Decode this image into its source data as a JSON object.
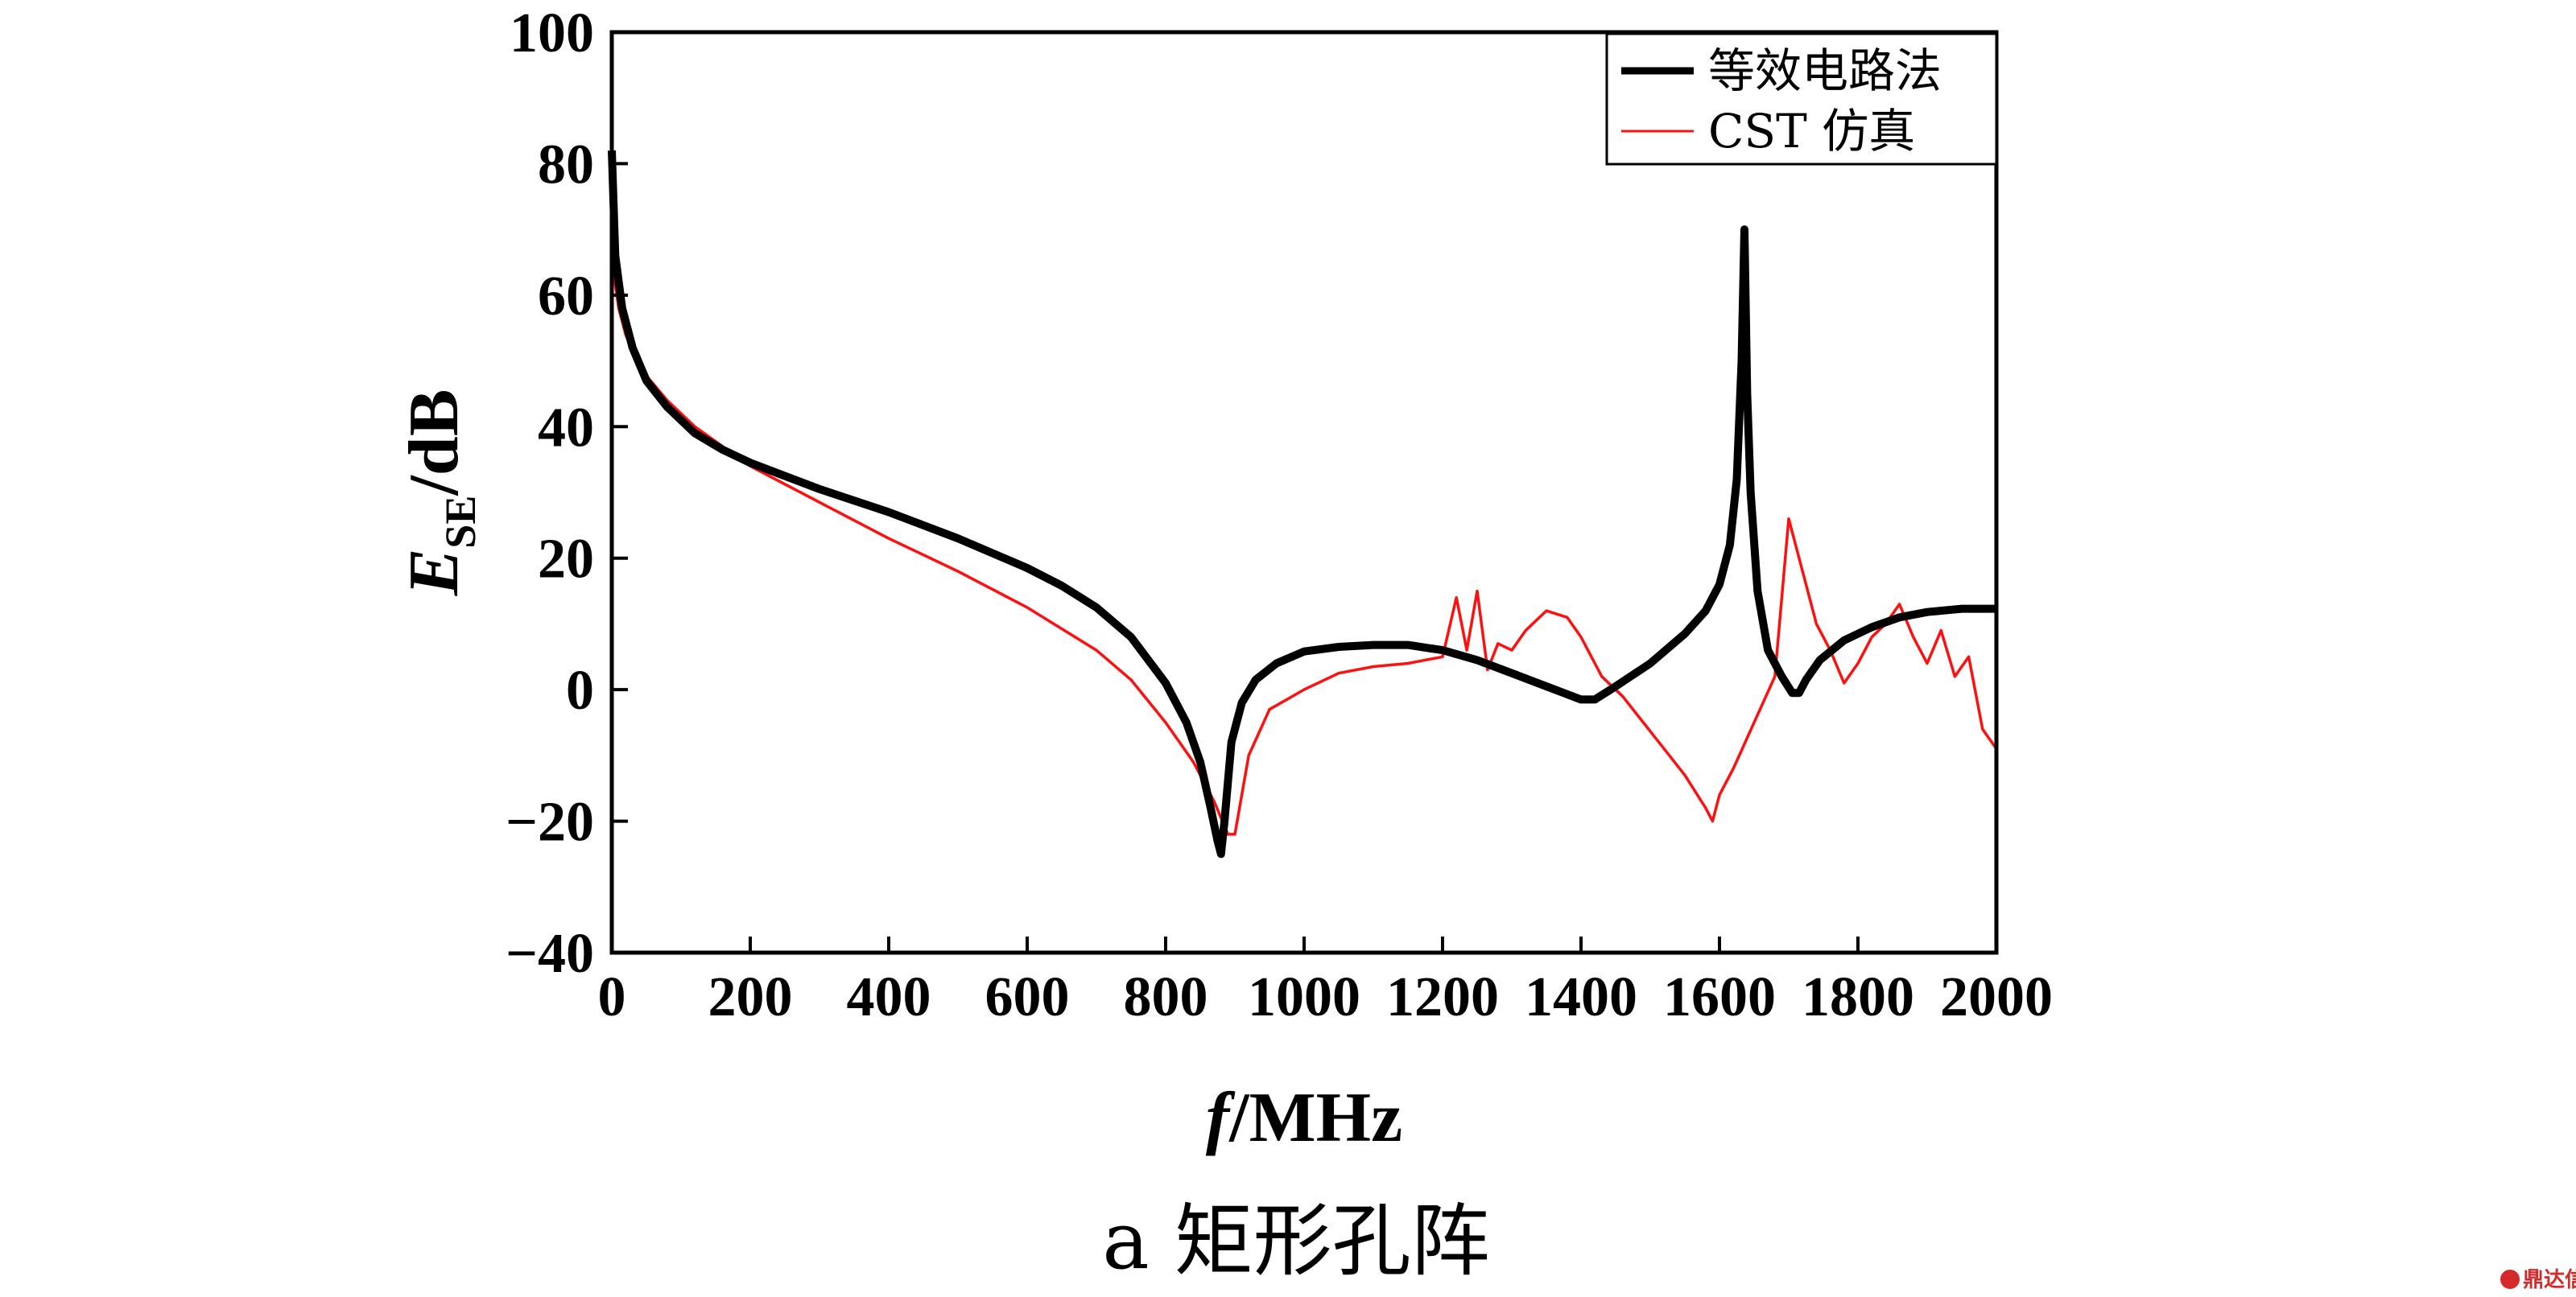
{
  "chart_data": {
    "type": "line",
    "xlabel_italic": "f",
    "xlabel_unit": "/MHz",
    "ylabel_italic": "E",
    "ylabel_sub": "SE",
    "ylabel_unit": "/dB",
    "xlim": [
      0,
      2000
    ],
    "ylim": [
      -40,
      100
    ],
    "xticks": [
      "0",
      "200",
      "400",
      "600",
      "800",
      "1000",
      "1200",
      "1400",
      "1600",
      "1800",
      "2000"
    ],
    "yticks": [
      "100",
      "80",
      "60",
      "40",
      "20",
      "0",
      "−20",
      "−40"
    ],
    "grid": false,
    "legend_position": "top-right",
    "caption": "a  矩形孔阵",
    "series": [
      {
        "name": "等效电路法",
        "color": "#000000",
        "x": [
          0,
          5,
          15,
          30,
          50,
          80,
          120,
          160,
          200,
          250,
          300,
          400,
          500,
          600,
          650,
          700,
          750,
          800,
          830,
          850,
          865,
          875,
          880,
          885,
          895,
          910,
          930,
          960,
          1000,
          1050,
          1100,
          1150,
          1200,
          1250,
          1300,
          1350,
          1400,
          1420,
          1450,
          1500,
          1550,
          1580,
          1600,
          1615,
          1625,
          1632,
          1636,
          1640,
          1645,
          1655,
          1670,
          1690,
          1705,
          1715,
          1725,
          1745,
          1780,
          1820,
          1860,
          1900,
          1950,
          2000
        ],
        "y": [
          82,
          66,
          58,
          52,
          47,
          43,
          39,
          36.5,
          34.5,
          32.5,
          30.5,
          27,
          23,
          18.5,
          15.8,
          12.5,
          8,
          1,
          -5,
          -11,
          -18,
          -23,
          -25,
          -20,
          -8,
          -2,
          1.5,
          4,
          5.8,
          6.5,
          6.8,
          6.8,
          6,
          4.5,
          2.5,
          0.5,
          -1.5,
          -1.5,
          0.5,
          4,
          8.5,
          12,
          16,
          22,
          32,
          50,
          70,
          45,
          30,
          15,
          6,
          2,
          -0.5,
          -0.5,
          1.5,
          4.5,
          7.5,
          9.5,
          11,
          11.8,
          12.3,
          12.3
        ]
      },
      {
        "name": "CST 仿真",
        "color": "#ff1010",
        "x": [
          0,
          10,
          20,
          40,
          80,
          120,
          160,
          200,
          300,
          400,
          500,
          600,
          700,
          750,
          800,
          840,
          870,
          890,
          900,
          920,
          950,
          1000,
          1050,
          1100,
          1150,
          1200,
          1220,
          1235,
          1250,
          1265,
          1280,
          1300,
          1320,
          1350,
          1380,
          1400,
          1430,
          1460,
          1490,
          1520,
          1550,
          1580,
          1590,
          1600,
          1620,
          1650,
          1680,
          1700,
          1720,
          1740,
          1760,
          1780,
          1800,
          1820,
          1840,
          1860,
          1880,
          1900,
          1920,
          1940,
          1960,
          1980,
          2000
        ],
        "y": [
          65,
          58,
          54,
          49,
          44,
          40,
          37,
          34,
          28.5,
          23,
          18,
          12.5,
          6,
          1.5,
          -5,
          -11,
          -17,
          -22,
          -22,
          -10,
          -3,
          0,
          2.5,
          3.5,
          4,
          5,
          14,
          6,
          15,
          3,
          7,
          6,
          9,
          12,
          11,
          8,
          2,
          -1,
          -5,
          -9,
          -13,
          -18,
          -20,
          -16,
          -12,
          -5,
          2,
          26,
          18,
          10,
          6,
          1,
          4,
          8,
          10,
          13,
          8,
          4,
          9,
          2,
          5,
          -6,
          -9
        ]
      }
    ]
  },
  "watermark": "鼎达信"
}
